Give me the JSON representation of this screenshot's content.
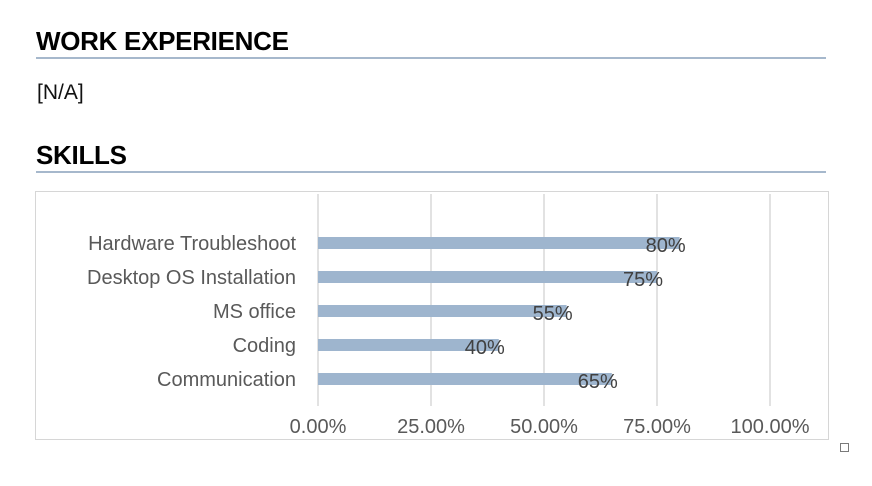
{
  "sections": {
    "work_experience": {
      "heading": "WORK EXPERIENCE",
      "body": "[N/A]"
    },
    "skills": {
      "heading": "SKILLS"
    }
  },
  "colors": {
    "bar": "#9eb5ce",
    "rule": "#a6b8cc",
    "grid": "#d9d9d9"
  },
  "chart_data": {
    "type": "bar",
    "orientation": "horizontal",
    "categories": [
      "Hardware Troubleshoot",
      "Desktop OS Installation",
      "MS office",
      "Coding",
      "Communication"
    ],
    "values": [
      0.8,
      0.75,
      0.55,
      0.4,
      0.65
    ],
    "data_labels": [
      "80%",
      "75%",
      "55%",
      "40%",
      "65%"
    ],
    "x_ticks": [
      0,
      0.25,
      0.5,
      0.75,
      1.0
    ],
    "x_tick_labels": [
      "0.00%",
      "25.00%",
      "50.00%",
      "75.00%",
      "100.00%"
    ],
    "xlim": [
      0,
      1.1
    ],
    "grid": "vertical",
    "legend": "none"
  }
}
